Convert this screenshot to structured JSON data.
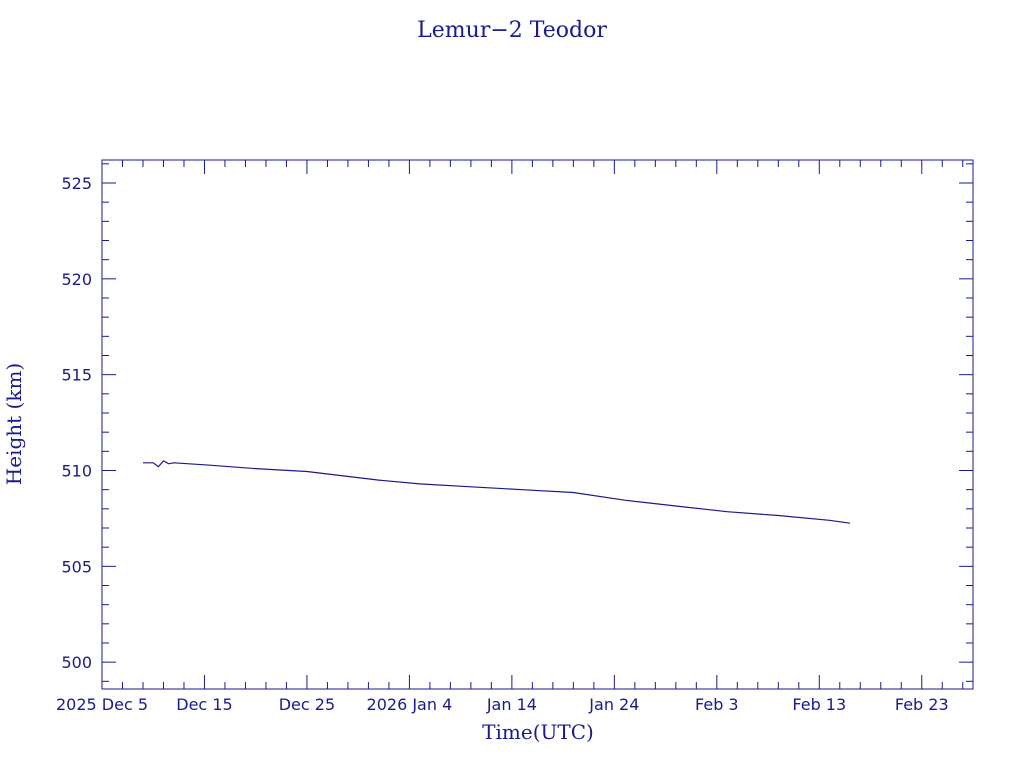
{
  "chart_data": {
    "type": "line",
    "title": "Lemur−2 Teodor",
    "xlabel": "Time(UTC)",
    "ylabel": "Height (km)",
    "xlim": [
      "2025-12-05",
      "2026-02-28"
    ],
    "ylim": [
      498.6,
      526.2
    ],
    "grid": false,
    "legend": "none",
    "color": "#1a1a8c",
    "x_ticks": [
      {
        "date": "2025-12-05",
        "label": "2025 Dec  5"
      },
      {
        "date": "2025-12-15",
        "label": "Dec 15"
      },
      {
        "date": "2025-12-25",
        "label": "Dec 25"
      },
      {
        "date": "2026-01-04",
        "label": "2026 Jan  4"
      },
      {
        "date": "2026-01-14",
        "label": "Jan 14"
      },
      {
        "date": "2026-01-24",
        "label": "Jan 24"
      },
      {
        "date": "2026-02-03",
        "label": "Feb  3"
      },
      {
        "date": "2026-02-13",
        "label": "Feb 13"
      },
      {
        "date": "2026-02-23",
        "label": "Feb 23"
      }
    ],
    "y_ticks": [
      {
        "value": 500,
        "label": "500"
      },
      {
        "value": 505,
        "label": "505"
      },
      {
        "value": 510,
        "label": "510"
      },
      {
        "value": 515,
        "label": "515"
      },
      {
        "value": 520,
        "label": "520"
      },
      {
        "value": 525,
        "label": "525"
      }
    ],
    "series": [
      {
        "x": [
          "2025-12-09",
          "2025-12-10",
          "2025-12-10T12:00",
          "2025-12-11",
          "2025-12-11T12:00",
          "2025-12-12",
          "2025-12-15",
          "2025-12-20",
          "2025-12-25",
          "2026-01-01",
          "2026-01-05",
          "2026-01-10",
          "2026-01-15",
          "2026-01-20",
          "2026-01-25",
          "2026-01-30",
          "2026-02-04",
          "2026-02-09",
          "2026-02-14",
          "2026-02-16"
        ],
        "y": [
          510.4,
          510.4,
          510.2,
          510.5,
          510.35,
          510.4,
          510.3,
          510.1,
          509.95,
          509.5,
          509.3,
          509.15,
          509.0,
          508.85,
          508.45,
          508.15,
          507.85,
          507.65,
          507.4,
          507.25
        ]
      }
    ]
  }
}
